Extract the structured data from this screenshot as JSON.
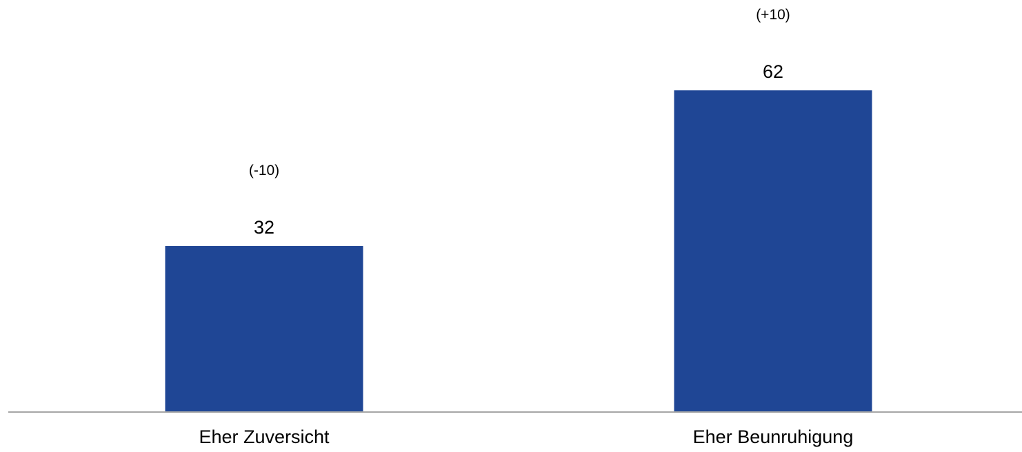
{
  "chart_data": {
    "type": "bar",
    "categories": [
      "Eher Zuversicht",
      "Eher Beunruhigung"
    ],
    "values": [
      32,
      62
    ],
    "changes": [
      "(-10)",
      "(+10)"
    ],
    "ylim": [
      0,
      70
    ],
    "grid": false,
    "legend": "none",
    "colors": {
      "bar": "#1f4695",
      "axis": "#a6a6a6"
    }
  }
}
